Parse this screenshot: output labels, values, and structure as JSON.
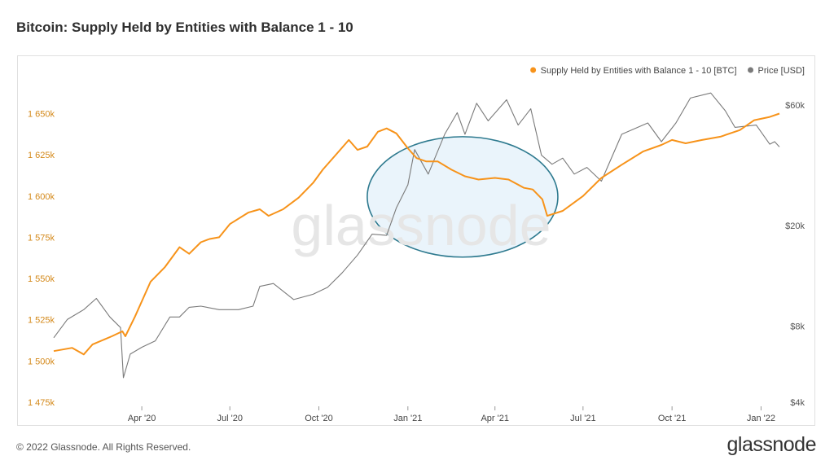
{
  "title": "Bitcoin: Supply Held by Entities with Balance 1 - 10",
  "footer": {
    "copyright": "© 2022 Glassnode. All Rights Reserved.",
    "logo": "glassnode"
  },
  "watermark": "glassnode",
  "colors": {
    "supply": "#f7931a",
    "price": "#7a7a7a",
    "axis_left": "#d4891a",
    "ellipse_stroke": "#2e7a8f",
    "ellipse_fill": "#eaf4fb"
  },
  "chart_data": {
    "type": "line",
    "legend": {
      "position": "top-right",
      "items": [
        {
          "name": "Supply Held by Entities with Balance 1 - 10 [BTC]",
          "color": "#f7931a"
        },
        {
          "name": "Price [USD]",
          "color": "#7a7a7a"
        }
      ]
    },
    "x_ticks": [
      "Apr '20",
      "Jul '20",
      "Oct '20",
      "Jan '21",
      "Apr '21",
      "Jul '21",
      "Oct '21",
      "Jan '22"
    ],
    "x_tick_dates": [
      "2020-04-01",
      "2020-07-01",
      "2020-10-01",
      "2021-01-01",
      "2021-04-01",
      "2021-07-01",
      "2021-10-01",
      "2022-01-01"
    ],
    "xlim": [
      "2020-01-01",
      "2022-01-20"
    ],
    "y_left": {
      "label": "",
      "ticks": [
        "1 475k",
        "1 500k",
        "1 525k",
        "1 550k",
        "1 575k",
        "1 600k",
        "1 625k",
        "1 650k"
      ],
      "tick_values": [
        1475000,
        1500000,
        1525000,
        1550000,
        1575000,
        1600000,
        1625000,
        1650000
      ],
      "lim": [
        1475000,
        1670000
      ]
    },
    "y_right": {
      "label": "",
      "scale": "log",
      "ticks": [
        "$4k",
        "$8k",
        "$20k",
        "$60k"
      ],
      "tick_values": [
        4000,
        8000,
        20000,
        60000
      ],
      "lim": [
        4000,
        75000
      ]
    },
    "grid": false,
    "annotation": {
      "type": "ellipse",
      "x_range": [
        "2020-11-20",
        "2021-06-05"
      ],
      "y_range": [
        1563000,
        1636000
      ]
    },
    "series": [
      {
        "name": "Supply Held by Entities with Balance 1 - 10 [BTC]",
        "axis": "left",
        "color": "#f7931a",
        "points": [
          [
            "2020-01-01",
            1506000
          ],
          [
            "2020-01-20",
            1508000
          ],
          [
            "2020-02-01",
            1504000
          ],
          [
            "2020-02-10",
            1510000
          ],
          [
            "2020-03-01",
            1515000
          ],
          [
            "2020-03-12",
            1518000
          ],
          [
            "2020-03-15",
            1515000
          ],
          [
            "2020-03-25",
            1527000
          ],
          [
            "2020-04-10",
            1548000
          ],
          [
            "2020-04-25",
            1557000
          ],
          [
            "2020-05-10",
            1569000
          ],
          [
            "2020-05-20",
            1565000
          ],
          [
            "2020-06-01",
            1572000
          ],
          [
            "2020-06-10",
            1574000
          ],
          [
            "2020-06-20",
            1575000
          ],
          [
            "2020-07-01",
            1583000
          ],
          [
            "2020-07-20",
            1590000
          ],
          [
            "2020-08-01",
            1592000
          ],
          [
            "2020-08-10",
            1588000
          ],
          [
            "2020-08-25",
            1592000
          ],
          [
            "2020-09-10",
            1599000
          ],
          [
            "2020-09-25",
            1608000
          ],
          [
            "2020-10-05",
            1616000
          ],
          [
            "2020-10-20",
            1626000
          ],
          [
            "2020-11-01",
            1634000
          ],
          [
            "2020-11-10",
            1628000
          ],
          [
            "2020-11-20",
            1630000
          ],
          [
            "2020-12-01",
            1639000
          ],
          [
            "2020-12-10",
            1641000
          ],
          [
            "2020-12-20",
            1638000
          ],
          [
            "2021-01-01",
            1629000
          ],
          [
            "2021-01-10",
            1623000
          ],
          [
            "2021-01-20",
            1621000
          ],
          [
            "2021-02-01",
            1621000
          ],
          [
            "2021-02-15",
            1616000
          ],
          [
            "2021-03-01",
            1612000
          ],
          [
            "2021-03-15",
            1610000
          ],
          [
            "2021-04-01",
            1611000
          ],
          [
            "2021-04-15",
            1610000
          ],
          [
            "2021-05-01",
            1605000
          ],
          [
            "2021-05-10",
            1604000
          ],
          [
            "2021-05-20",
            1598000
          ],
          [
            "2021-05-25",
            1588000
          ],
          [
            "2021-06-10",
            1591000
          ],
          [
            "2021-07-01",
            1600000
          ],
          [
            "2021-07-20",
            1611000
          ],
          [
            "2021-08-10",
            1619000
          ],
          [
            "2021-09-01",
            1627000
          ],
          [
            "2021-09-20",
            1631000
          ],
          [
            "2021-10-01",
            1634000
          ],
          [
            "2021-10-15",
            1632000
          ],
          [
            "2021-11-01",
            1634000
          ],
          [
            "2021-11-20",
            1636000
          ],
          [
            "2021-12-10",
            1640000
          ],
          [
            "2021-12-25",
            1646000
          ],
          [
            "2022-01-10",
            1648000
          ],
          [
            "2022-01-20",
            1650000
          ]
        ]
      },
      {
        "name": "Price [USD]",
        "axis": "right",
        "color": "#7a7a7a",
        "points": [
          [
            "2020-01-01",
            7200
          ],
          [
            "2020-01-15",
            8500
          ],
          [
            "2020-02-01",
            9300
          ],
          [
            "2020-02-14",
            10300
          ],
          [
            "2020-02-28",
            8700
          ],
          [
            "2020-03-10",
            7900
          ],
          [
            "2020-03-13",
            5000
          ],
          [
            "2020-03-20",
            6200
          ],
          [
            "2020-04-01",
            6600
          ],
          [
            "2020-04-15",
            7000
          ],
          [
            "2020-04-30",
            8700
          ],
          [
            "2020-05-10",
            8700
          ],
          [
            "2020-05-20",
            9500
          ],
          [
            "2020-06-01",
            9600
          ],
          [
            "2020-06-20",
            9300
          ],
          [
            "2020-07-10",
            9300
          ],
          [
            "2020-07-25",
            9600
          ],
          [
            "2020-08-01",
            11500
          ],
          [
            "2020-08-15",
            11800
          ],
          [
            "2020-09-05",
            10200
          ],
          [
            "2020-09-25",
            10700
          ],
          [
            "2020-10-10",
            11400
          ],
          [
            "2020-10-25",
            13000
          ],
          [
            "2020-11-10",
            15300
          ],
          [
            "2020-11-25",
            18500
          ],
          [
            "2020-12-10",
            18300
          ],
          [
            "2020-12-20",
            23500
          ],
          [
            "2021-01-01",
            29000
          ],
          [
            "2021-01-08",
            40000
          ],
          [
            "2021-01-22",
            32000
          ],
          [
            "2021-02-08",
            46000
          ],
          [
            "2021-02-21",
            56000
          ],
          [
            "2021-03-01",
            46000
          ],
          [
            "2021-03-13",
            61000
          ],
          [
            "2021-03-25",
            52000
          ],
          [
            "2021-04-13",
            63000
          ],
          [
            "2021-04-25",
            50000
          ],
          [
            "2021-05-08",
            58000
          ],
          [
            "2021-05-19",
            38000
          ],
          [
            "2021-05-30",
            35000
          ],
          [
            "2021-06-10",
            37000
          ],
          [
            "2021-06-22",
            32000
          ],
          [
            "2021-07-05",
            34000
          ],
          [
            "2021-07-20",
            30000
          ],
          [
            "2021-08-10",
            46000
          ],
          [
            "2021-09-06",
            51000
          ],
          [
            "2021-09-20",
            43000
          ],
          [
            "2021-10-05",
            51000
          ],
          [
            "2021-10-20",
            64000
          ],
          [
            "2021-11-10",
            67000
          ],
          [
            "2021-11-25",
            57000
          ],
          [
            "2021-12-05",
            49000
          ],
          [
            "2021-12-27",
            50000
          ],
          [
            "2022-01-10",
            42000
          ],
          [
            "2022-01-15",
            43000
          ],
          [
            "2022-01-20",
            41000
          ]
        ]
      }
    ]
  }
}
